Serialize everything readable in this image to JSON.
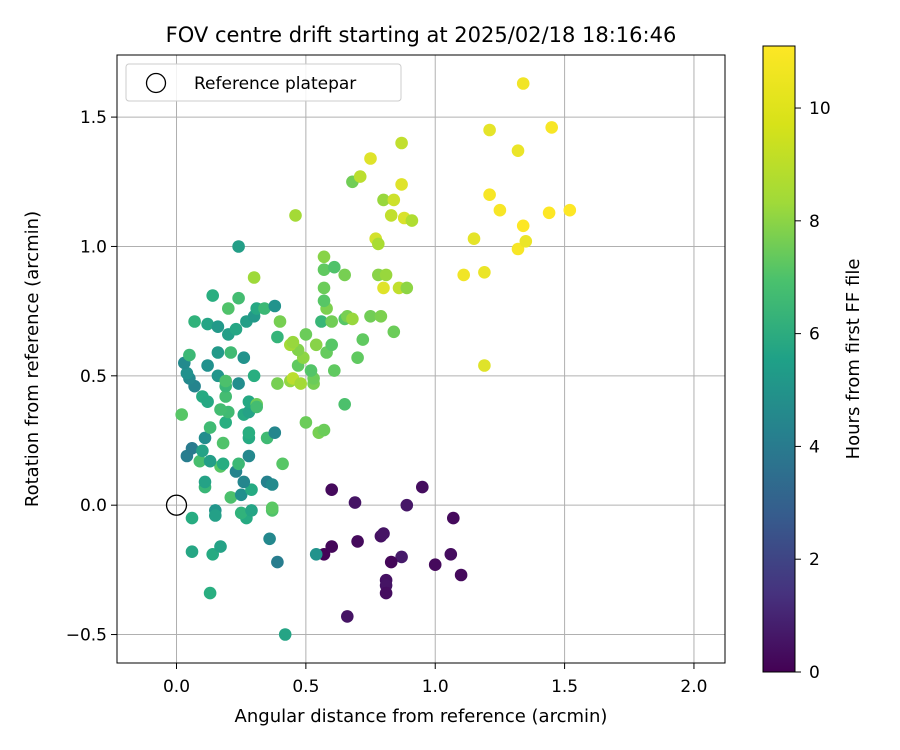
{
  "chart_data": {
    "type": "scatter",
    "title": "FOV centre drift starting at 2025/02/18 18:16:46",
    "xlabel": "Angular distance from reference (arcmin)",
    "ylabel": "Rotation from reference (arcmin)",
    "xlim": [
      -0.23,
      2.12
    ],
    "ylim": [
      -0.61,
      1.74
    ],
    "xticks": [
      0.0,
      0.5,
      1.0,
      1.5,
      2.0
    ],
    "xtick_labels": [
      "0.0",
      "0.5",
      "1.0",
      "1.5",
      "2.0"
    ],
    "yticks": [
      -0.5,
      0.0,
      0.5,
      1.0,
      1.5
    ],
    "ytick_labels": [
      "−0.5",
      "0.0",
      "0.5",
      "1.0",
      "1.5"
    ],
    "grid": true,
    "legend": {
      "position": "top-left",
      "entries": [
        {
          "label": "Reference platepar",
          "marker": "open-circle"
        }
      ]
    },
    "reference_point": {
      "x": 0.0,
      "y": 0.0
    },
    "colorbar": {
      "label": "Hours from first FF file",
      "min": 0,
      "max": 11.1,
      "ticks": [
        0,
        2,
        4,
        6,
        8,
        10
      ],
      "tick_labels": [
        "0",
        "2",
        "4",
        "6",
        "8",
        "10"
      ],
      "colormap": "viridis"
    },
    "points": [
      {
        "x": 0.6,
        "y": 0.06,
        "h": 0.3
      },
      {
        "x": 0.69,
        "y": 0.01,
        "h": 0.6
      },
      {
        "x": 0.95,
        "y": 0.07,
        "h": 0.4
      },
      {
        "x": 0.89,
        "y": -0.0,
        "h": 0.7
      },
      {
        "x": 1.07,
        "y": -0.05,
        "h": 0.3
      },
      {
        "x": 0.57,
        "y": -0.19,
        "h": 0.1
      },
      {
        "x": 0.6,
        "y": -0.16,
        "h": 0.2
      },
      {
        "x": 0.7,
        "y": -0.14,
        "h": 0.3
      },
      {
        "x": 0.79,
        "y": -0.12,
        "h": 0.5
      },
      {
        "x": 0.8,
        "y": -0.11,
        "h": 0.6
      },
      {
        "x": 0.87,
        "y": -0.2,
        "h": 0.8
      },
      {
        "x": 0.83,
        "y": -0.22,
        "h": 0.2
      },
      {
        "x": 1.0,
        "y": -0.23,
        "h": 0.3
      },
      {
        "x": 1.06,
        "y": -0.19,
        "h": 0.4
      },
      {
        "x": 1.1,
        "y": -0.27,
        "h": 0.3
      },
      {
        "x": 0.81,
        "y": -0.29,
        "h": 0.5
      },
      {
        "x": 0.81,
        "y": -0.31,
        "h": 0.6
      },
      {
        "x": 0.81,
        "y": -0.34,
        "h": 0.4
      },
      {
        "x": 0.66,
        "y": -0.43,
        "h": 0.6
      },
      {
        "x": 0.42,
        "y": -0.5,
        "h": 6.5
      },
      {
        "x": 0.13,
        "y": -0.34,
        "h": 7.0
      },
      {
        "x": 0.06,
        "y": -0.18,
        "h": 6.6
      },
      {
        "x": 0.14,
        "y": -0.19,
        "h": 6.8
      },
      {
        "x": 0.17,
        "y": -0.16,
        "h": 6.4
      },
      {
        "x": 0.06,
        "y": -0.05,
        "h": 6.9
      },
      {
        "x": 0.15,
        "y": -0.02,
        "h": 5.8
      },
      {
        "x": 0.15,
        "y": -0.04,
        "h": 6.3
      },
      {
        "x": 0.27,
        "y": -0.05,
        "h": 6.8
      },
      {
        "x": 0.25,
        "y": -0.03,
        "h": 7.2
      },
      {
        "x": 0.29,
        "y": -0.02,
        "h": 6.5
      },
      {
        "x": 0.36,
        "y": -0.13,
        "h": 5.2
      },
      {
        "x": 0.39,
        "y": -0.22,
        "h": 4.7
      },
      {
        "x": 0.54,
        "y": -0.19,
        "h": 5.7
      },
      {
        "x": 0.37,
        "y": -0.02,
        "h": 8.0
      },
      {
        "x": 0.37,
        "y": -0.01,
        "h": 8.3
      },
      {
        "x": 0.21,
        "y": 0.03,
        "h": 7.9
      },
      {
        "x": 0.25,
        "y": 0.04,
        "h": 5.5
      },
      {
        "x": 0.29,
        "y": 0.06,
        "h": 6.8
      },
      {
        "x": 0.11,
        "y": 0.07,
        "h": 7.4
      },
      {
        "x": 0.11,
        "y": 0.09,
        "h": 6.4
      },
      {
        "x": 0.26,
        "y": 0.09,
        "h": 5.1
      },
      {
        "x": 0.35,
        "y": 0.09,
        "h": 4.9
      },
      {
        "x": 0.37,
        "y": 0.08,
        "h": 5.3
      },
      {
        "x": 0.23,
        "y": 0.13,
        "h": 5.0
      },
      {
        "x": 0.17,
        "y": 0.15,
        "h": 8.2
      },
      {
        "x": 0.18,
        "y": 0.16,
        "h": 6.9
      },
      {
        "x": 0.24,
        "y": 0.16,
        "h": 7.5
      },
      {
        "x": 0.04,
        "y": 0.19,
        "h": 4.7
      },
      {
        "x": 0.06,
        "y": 0.22,
        "h": 4.6
      },
      {
        "x": 0.09,
        "y": 0.17,
        "h": 7.8
      },
      {
        "x": 0.13,
        "y": 0.17,
        "h": 6.2
      },
      {
        "x": 0.1,
        "y": 0.21,
        "h": 6.4
      },
      {
        "x": 0.28,
        "y": 0.19,
        "h": 5.2
      },
      {
        "x": 0.11,
        "y": 0.26,
        "h": 5.4
      },
      {
        "x": 0.13,
        "y": 0.3,
        "h": 7.6
      },
      {
        "x": 0.18,
        "y": 0.24,
        "h": 8.0
      },
      {
        "x": 0.28,
        "y": 0.26,
        "h": 6.8
      },
      {
        "x": 0.28,
        "y": 0.28,
        "h": 7.0
      },
      {
        "x": 0.35,
        "y": 0.26,
        "h": 7.6
      },
      {
        "x": 0.38,
        "y": 0.28,
        "h": 5.1
      },
      {
        "x": 0.41,
        "y": 0.16,
        "h": 8.2
      },
      {
        "x": 0.5,
        "y": 0.32,
        "h": 8.6
      },
      {
        "x": 0.55,
        "y": 0.28,
        "h": 8.8
      },
      {
        "x": 0.57,
        "y": 0.29,
        "h": 8.6
      },
      {
        "x": 0.02,
        "y": 0.35,
        "h": 8.2
      },
      {
        "x": 0.19,
        "y": 0.32,
        "h": 7.0
      },
      {
        "x": 0.2,
        "y": 0.36,
        "h": 7.6
      },
      {
        "x": 0.26,
        "y": 0.35,
        "h": 6.8
      },
      {
        "x": 0.28,
        "y": 0.36,
        "h": 6.4
      },
      {
        "x": 0.28,
        "y": 0.4,
        "h": 6.7
      },
      {
        "x": 0.31,
        "y": 0.39,
        "h": 8.6
      },
      {
        "x": 0.31,
        "y": 0.38,
        "h": 7.7
      },
      {
        "x": 0.17,
        "y": 0.37,
        "h": 7.7
      },
      {
        "x": 0.1,
        "y": 0.42,
        "h": 6.8
      },
      {
        "x": 0.12,
        "y": 0.4,
        "h": 6.7
      },
      {
        "x": 0.19,
        "y": 0.42,
        "h": 7.7
      },
      {
        "x": 0.07,
        "y": 0.46,
        "h": 5.0
      },
      {
        "x": 0.05,
        "y": 0.49,
        "h": 5.2
      },
      {
        "x": 0.04,
        "y": 0.51,
        "h": 5.6
      },
      {
        "x": 0.03,
        "y": 0.55,
        "h": 5.3
      },
      {
        "x": 0.05,
        "y": 0.58,
        "h": 7.5
      },
      {
        "x": 0.12,
        "y": 0.54,
        "h": 5.6
      },
      {
        "x": 0.16,
        "y": 0.5,
        "h": 5.8
      },
      {
        "x": 0.16,
        "y": 0.59,
        "h": 6.0
      },
      {
        "x": 0.19,
        "y": 0.46,
        "h": 7.4
      },
      {
        "x": 0.19,
        "y": 0.48,
        "h": 7.9
      },
      {
        "x": 0.21,
        "y": 0.59,
        "h": 7.6
      },
      {
        "x": 0.24,
        "y": 0.47,
        "h": 5.4
      },
      {
        "x": 0.26,
        "y": 0.57,
        "h": 5.7
      },
      {
        "x": 0.3,
        "y": 0.5,
        "h": 7.0
      },
      {
        "x": 0.39,
        "y": 0.47,
        "h": 8.8
      },
      {
        "x": 0.44,
        "y": 0.48,
        "h": 9.3
      },
      {
        "x": 0.45,
        "y": 0.49,
        "h": 10.0
      },
      {
        "x": 0.48,
        "y": 0.47,
        "h": 9.6
      },
      {
        "x": 0.53,
        "y": 0.47,
        "h": 8.8
      },
      {
        "x": 0.53,
        "y": 0.49,
        "h": 8.6
      },
      {
        "x": 0.52,
        "y": 0.52,
        "h": 8.1
      },
      {
        "x": 0.47,
        "y": 0.54,
        "h": 8.4
      },
      {
        "x": 0.49,
        "y": 0.57,
        "h": 9.2
      },
      {
        "x": 0.47,
        "y": 0.6,
        "h": 9.0
      },
      {
        "x": 0.44,
        "y": 0.62,
        "h": 9.6
      },
      {
        "x": 0.45,
        "y": 0.63,
        "h": 9.4
      },
      {
        "x": 0.5,
        "y": 0.66,
        "h": 8.6
      },
      {
        "x": 0.54,
        "y": 0.62,
        "h": 9.1
      },
      {
        "x": 0.58,
        "y": 0.59,
        "h": 8.5
      },
      {
        "x": 0.6,
        "y": 0.62,
        "h": 8.2
      },
      {
        "x": 0.61,
        "y": 0.52,
        "h": 8.4
      },
      {
        "x": 0.65,
        "y": 0.39,
        "h": 7.9
      },
      {
        "x": 0.7,
        "y": 0.57,
        "h": 8.4
      },
      {
        "x": 0.72,
        "y": 0.64,
        "h": 8.4
      },
      {
        "x": 0.07,
        "y": 0.71,
        "h": 7.2
      },
      {
        "x": 0.12,
        "y": 0.7,
        "h": 6.5
      },
      {
        "x": 0.16,
        "y": 0.69,
        "h": 6.0
      },
      {
        "x": 0.14,
        "y": 0.81,
        "h": 7.0
      },
      {
        "x": 0.2,
        "y": 0.66,
        "h": 6.2
      },
      {
        "x": 0.23,
        "y": 0.68,
        "h": 6.6
      },
      {
        "x": 0.27,
        "y": 0.71,
        "h": 6.2
      },
      {
        "x": 0.3,
        "y": 0.73,
        "h": 6.0
      },
      {
        "x": 0.31,
        "y": 0.76,
        "h": 6.7
      },
      {
        "x": 0.34,
        "y": 0.76,
        "h": 7.5
      },
      {
        "x": 0.38,
        "y": 0.77,
        "h": 5.7
      },
      {
        "x": 0.4,
        "y": 0.71,
        "h": 8.8
      },
      {
        "x": 0.39,
        "y": 0.65,
        "h": 7.3
      },
      {
        "x": 0.2,
        "y": 0.76,
        "h": 8.0
      },
      {
        "x": 0.24,
        "y": 0.8,
        "h": 7.7
      },
      {
        "x": 0.3,
        "y": 0.88,
        "h": 9.5
      },
      {
        "x": 0.24,
        "y": 1.0,
        "h": 6.2
      },
      {
        "x": 0.56,
        "y": 0.71,
        "h": 7.4
      },
      {
        "x": 0.58,
        "y": 0.76,
        "h": 8.9
      },
      {
        "x": 0.57,
        "y": 0.79,
        "h": 8.2
      },
      {
        "x": 0.6,
        "y": 0.71,
        "h": 8.7
      },
      {
        "x": 0.65,
        "y": 0.72,
        "h": 8.2
      },
      {
        "x": 0.66,
        "y": 0.73,
        "h": 8.8
      },
      {
        "x": 0.68,
        "y": 0.72,
        "h": 9.4
      },
      {
        "x": 0.75,
        "y": 0.73,
        "h": 8.7
      },
      {
        "x": 0.79,
        "y": 0.73,
        "h": 8.9
      },
      {
        "x": 0.84,
        "y": 0.67,
        "h": 8.6
      },
      {
        "x": 0.57,
        "y": 0.84,
        "h": 8.6
      },
      {
        "x": 0.57,
        "y": 0.91,
        "h": 8.4
      },
      {
        "x": 0.61,
        "y": 0.92,
        "h": 8.0
      },
      {
        "x": 0.57,
        "y": 0.96,
        "h": 9.1
      },
      {
        "x": 0.65,
        "y": 0.89,
        "h": 8.8
      },
      {
        "x": 0.78,
        "y": 0.89,
        "h": 9.1
      },
      {
        "x": 0.81,
        "y": 0.89,
        "h": 9.4
      },
      {
        "x": 0.8,
        "y": 0.84,
        "h": 10.6
      },
      {
        "x": 0.86,
        "y": 0.84,
        "h": 10.1
      },
      {
        "x": 0.89,
        "y": 0.84,
        "h": 9.2
      },
      {
        "x": 0.46,
        "y": 1.12,
        "h": 9.6
      },
      {
        "x": 0.68,
        "y": 1.25,
        "h": 8.7
      },
      {
        "x": 0.71,
        "y": 1.27,
        "h": 10.0
      },
      {
        "x": 0.75,
        "y": 1.34,
        "h": 10.6
      },
      {
        "x": 0.77,
        "y": 1.03,
        "h": 10.4
      },
      {
        "x": 0.78,
        "y": 1.01,
        "h": 9.7
      },
      {
        "x": 0.8,
        "y": 1.18,
        "h": 9.4
      },
      {
        "x": 0.83,
        "y": 1.12,
        "h": 10.1
      },
      {
        "x": 0.84,
        "y": 1.18,
        "h": 10.3
      },
      {
        "x": 0.87,
        "y": 1.24,
        "h": 10.6
      },
      {
        "x": 0.87,
        "y": 1.4,
        "h": 10.1
      },
      {
        "x": 0.88,
        "y": 1.11,
        "h": 10.5
      },
      {
        "x": 0.91,
        "y": 1.1,
        "h": 9.8
      },
      {
        "x": 1.11,
        "y": 0.89,
        "h": 10.9
      },
      {
        "x": 1.15,
        "y": 1.03,
        "h": 10.7
      },
      {
        "x": 1.19,
        "y": 0.9,
        "h": 10.8
      },
      {
        "x": 1.19,
        "y": 0.54,
        "h": 10.6
      },
      {
        "x": 1.21,
        "y": 1.45,
        "h": 10.7
      },
      {
        "x": 1.21,
        "y": 1.2,
        "h": 11.0
      },
      {
        "x": 1.25,
        "y": 1.14,
        "h": 11.0
      },
      {
        "x": 1.32,
        "y": 1.37,
        "h": 10.8
      },
      {
        "x": 1.32,
        "y": 0.99,
        "h": 11.0
      },
      {
        "x": 1.34,
        "y": 1.08,
        "h": 11.1
      },
      {
        "x": 1.35,
        "y": 1.02,
        "h": 10.8
      },
      {
        "x": 1.34,
        "y": 1.63,
        "h": 10.9
      },
      {
        "x": 1.45,
        "y": 1.46,
        "h": 11.0
      },
      {
        "x": 1.44,
        "y": 1.13,
        "h": 11.1
      },
      {
        "x": 1.52,
        "y": 1.14,
        "h": 11.1
      }
    ]
  }
}
